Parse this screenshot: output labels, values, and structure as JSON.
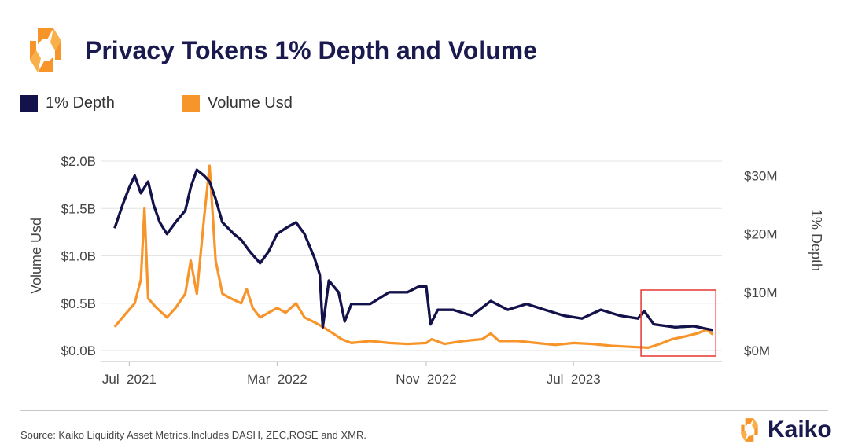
{
  "header": {
    "logo_icon": "kaiko-logo-icon",
    "title": "Privacy Tokens 1% Depth and Volume"
  },
  "legend": [
    {
      "label": "1% Depth",
      "color": "#14124a"
    },
    {
      "label": "Volume Usd",
      "color": "#f7952b"
    }
  ],
  "footer": {
    "source": "Source: Kaiko Liquidity Asset Metrics.Includes DASH, ZEC,ROSE and XMR.",
    "brand": "Kaiko",
    "brand_icon": "kaiko-logo-icon"
  },
  "chart_data": {
    "type": "line",
    "x_ticks": [
      {
        "label": "Jul  2021",
        "date": "2021-07-01"
      },
      {
        "label": "Mar  2022",
        "date": "2022-03-01"
      },
      {
        "label": "Nov  2022",
        "date": "2022-11-01"
      },
      {
        "label": "Jul  2023",
        "date": "2023-07-01"
      }
    ],
    "xlim": [
      "2021-05-15",
      "2024-03-01"
    ],
    "y_left": {
      "label": "Volume Usd",
      "ticks": [
        "$0.0B",
        "$0.5B",
        "$1.0B",
        "$1.5B",
        "$2.0B"
      ],
      "tick_values": [
        0,
        0.5,
        1.0,
        1.5,
        2.0
      ],
      "range": [
        0,
        2.0
      ],
      "unit": "USD billions"
    },
    "y_right": {
      "label": "1% Depth",
      "ticks": [
        "$0M",
        "$10M",
        "$20M",
        "$30M"
      ],
      "tick_values": [
        0,
        10,
        20,
        30
      ],
      "range": [
        0,
        32.5
      ],
      "unit": "USD millions"
    },
    "grid": true,
    "highlight_box": {
      "x_start": "2023-10-20",
      "x_end": "2024-02-20",
      "color": "#e8413b"
    },
    "series": [
      {
        "name": "1% Depth",
        "axis": "right",
        "color": "#14124a",
        "points": [
          [
            "2021-06-07",
            21
          ],
          [
            "2021-06-20",
            25
          ],
          [
            "2021-07-01",
            28
          ],
          [
            "2021-07-10",
            30
          ],
          [
            "2021-07-20",
            27
          ],
          [
            "2021-08-01",
            29
          ],
          [
            "2021-08-10",
            25
          ],
          [
            "2021-08-20",
            22
          ],
          [
            "2021-09-01",
            20
          ],
          [
            "2021-09-15",
            22
          ],
          [
            "2021-10-01",
            24
          ],
          [
            "2021-10-10",
            28
          ],
          [
            "2021-10-20",
            31
          ],
          [
            "2021-11-01",
            30
          ],
          [
            "2021-11-10",
            29
          ],
          [
            "2021-11-20",
            26
          ],
          [
            "2021-12-01",
            22
          ],
          [
            "2021-12-20",
            20
          ],
          [
            "2022-01-01",
            19
          ],
          [
            "2022-01-15",
            17
          ],
          [
            "2022-02-01",
            15
          ],
          [
            "2022-02-15",
            17
          ],
          [
            "2022-03-01",
            20
          ],
          [
            "2022-03-15",
            21
          ],
          [
            "2022-04-01",
            22
          ],
          [
            "2022-04-15",
            20
          ],
          [
            "2022-05-01",
            16
          ],
          [
            "2022-05-10",
            13
          ],
          [
            "2022-05-15",
            4
          ],
          [
            "2022-05-25",
            12
          ],
          [
            "2022-06-10",
            10
          ],
          [
            "2022-06-20",
            5
          ],
          [
            "2022-07-01",
            8
          ],
          [
            "2022-08-01",
            8
          ],
          [
            "2022-09-01",
            10
          ],
          [
            "2022-10-01",
            10
          ],
          [
            "2022-10-20",
            11
          ],
          [
            "2022-11-01",
            11
          ],
          [
            "2022-11-08",
            4.5
          ],
          [
            "2022-11-20",
            7
          ],
          [
            "2022-12-15",
            7
          ],
          [
            "2023-01-15",
            6
          ],
          [
            "2023-02-15",
            8.5
          ],
          [
            "2023-03-15",
            7
          ],
          [
            "2023-04-15",
            8
          ],
          [
            "2023-05-15",
            7
          ],
          [
            "2023-06-15",
            6
          ],
          [
            "2023-07-15",
            5.5
          ],
          [
            "2023-08-15",
            7
          ],
          [
            "2023-09-15",
            6
          ],
          [
            "2023-10-15",
            5.5
          ],
          [
            "2023-10-25",
            6.8
          ],
          [
            "2023-11-10",
            4.5
          ],
          [
            "2023-12-15",
            4
          ],
          [
            "2024-01-15",
            4.2
          ],
          [
            "2024-02-01",
            3.8
          ],
          [
            "2024-02-15",
            3.5
          ]
        ]
      },
      {
        "name": "Volume Usd",
        "axis": "left",
        "color": "#f7952b",
        "points": [
          [
            "2021-06-07",
            0.25
          ],
          [
            "2021-06-20",
            0.35
          ],
          [
            "2021-07-10",
            0.5
          ],
          [
            "2021-07-20",
            0.75
          ],
          [
            "2021-07-26",
            1.5
          ],
          [
            "2021-08-01",
            0.55
          ],
          [
            "2021-08-15",
            0.45
          ],
          [
            "2021-09-01",
            0.35
          ],
          [
            "2021-09-15",
            0.45
          ],
          [
            "2021-10-01",
            0.6
          ],
          [
            "2021-10-10",
            0.95
          ],
          [
            "2021-10-20",
            0.6
          ],
          [
            "2021-11-01",
            1.4
          ],
          [
            "2021-11-10",
            1.95
          ],
          [
            "2021-11-20",
            0.95
          ],
          [
            "2021-12-01",
            0.6
          ],
          [
            "2021-12-15",
            0.55
          ],
          [
            "2022-01-01",
            0.5
          ],
          [
            "2022-01-10",
            0.65
          ],
          [
            "2022-01-20",
            0.45
          ],
          [
            "2022-02-01",
            0.35
          ],
          [
            "2022-02-15",
            0.4
          ],
          [
            "2022-03-01",
            0.45
          ],
          [
            "2022-03-15",
            0.4
          ],
          [
            "2022-04-01",
            0.5
          ],
          [
            "2022-04-15",
            0.35
          ],
          [
            "2022-05-01",
            0.3
          ],
          [
            "2022-05-15",
            0.25
          ],
          [
            "2022-06-01",
            0.18
          ],
          [
            "2022-06-15",
            0.12
          ],
          [
            "2022-07-01",
            0.08
          ],
          [
            "2022-08-01",
            0.1
          ],
          [
            "2022-09-01",
            0.08
          ],
          [
            "2022-10-01",
            0.07
          ],
          [
            "2022-11-01",
            0.08
          ],
          [
            "2022-11-10",
            0.12
          ],
          [
            "2022-12-01",
            0.07
          ],
          [
            "2023-01-01",
            0.1
          ],
          [
            "2023-02-01",
            0.12
          ],
          [
            "2023-02-15",
            0.18
          ],
          [
            "2023-03-01",
            0.1
          ],
          [
            "2023-04-01",
            0.1
          ],
          [
            "2023-05-01",
            0.08
          ],
          [
            "2023-06-01",
            0.06
          ],
          [
            "2023-07-01",
            0.08
          ],
          [
            "2023-08-01",
            0.07
          ],
          [
            "2023-09-01",
            0.05
          ],
          [
            "2023-10-01",
            0.04
          ],
          [
            "2023-11-01",
            0.03
          ],
          [
            "2023-11-20",
            0.07
          ],
          [
            "2023-12-10",
            0.12
          ],
          [
            "2024-01-01",
            0.15
          ],
          [
            "2024-01-20",
            0.18
          ],
          [
            "2024-02-05",
            0.22
          ],
          [
            "2024-02-15",
            0.17
          ]
        ]
      }
    ]
  }
}
